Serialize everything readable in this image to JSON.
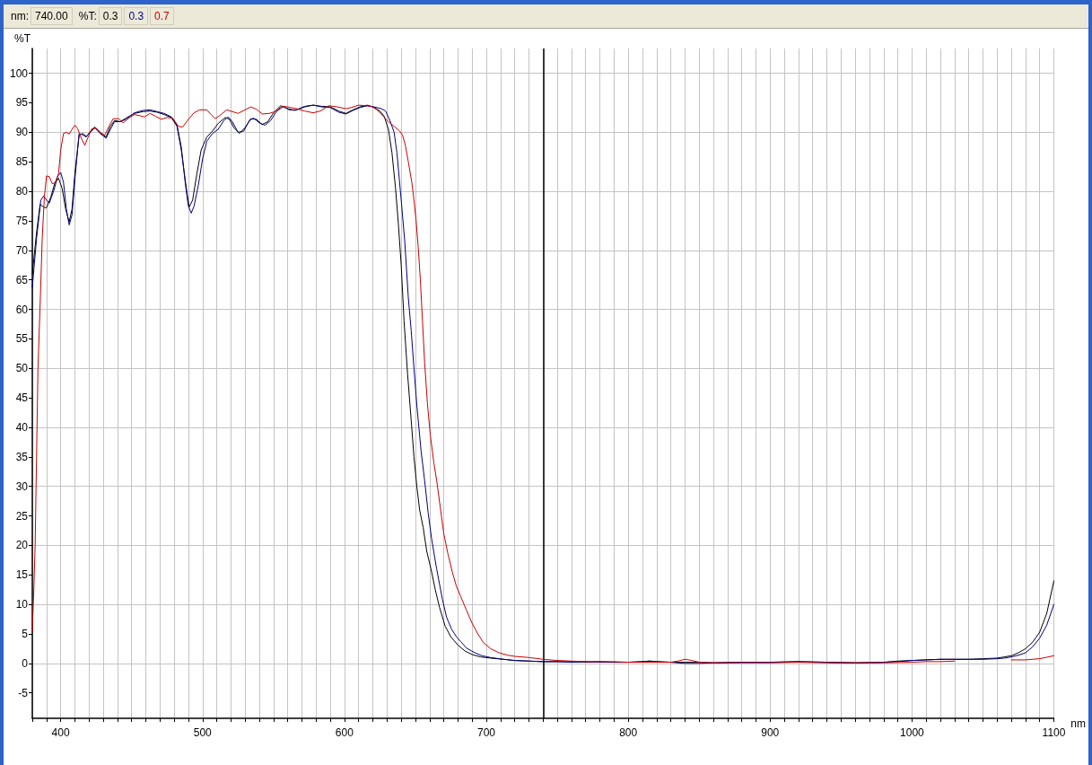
{
  "chart_data": {
    "type": "line",
    "xlabel": "nm",
    "ylabel": "%T",
    "annotations": [
      "nm:",
      "740.00",
      "%T:",
      "0.3",
      "0.3",
      "0.7"
    ],
    "xlim": [
      380,
      1100
    ],
    "xticks": [
      {
        "value": 380,
        "label": null
      },
      {
        "value": 390,
        "label": null
      },
      400,
      {
        "value": 410,
        "label": null
      },
      {
        "value": 420,
        "label": null
      },
      {
        "value": 430,
        "label": null
      },
      {
        "value": 440,
        "label": null
      },
      {
        "value": 450,
        "label": null
      },
      {
        "value": 460,
        "label": null
      },
      {
        "value": 470,
        "label": null
      },
      {
        "value": 480,
        "label": null
      },
      {
        "value": 490,
        "label": null
      },
      500,
      {
        "value": 510,
        "label": null
      },
      {
        "value": 520,
        "label": null
      },
      {
        "value": 530,
        "label": null
      },
      {
        "value": 540,
        "label": null
      },
      {
        "value": 550,
        "label": null
      },
      {
        "value": 560,
        "label": null
      },
      {
        "value": 570,
        "label": null
      },
      {
        "value": 580,
        "label": null
      },
      {
        "value": 590,
        "label": null
      },
      600,
      {
        "value": 610,
        "label": null
      },
      {
        "value": 620,
        "label": null
      },
      {
        "value": 630,
        "label": null
      },
      {
        "value": 640,
        "label": null
      },
      {
        "value": 650,
        "label": null
      },
      {
        "value": 660,
        "label": null
      },
      {
        "value": 670,
        "label": null
      },
      {
        "value": 680,
        "label": null
      },
      {
        "value": 690,
        "label": null
      },
      700,
      {
        "value": 710,
        "label": null
      },
      {
        "value": 720,
        "label": null
      },
      {
        "value": 730,
        "label": null
      },
      {
        "value": 740,
        "label": null
      },
      {
        "value": 750,
        "label": null
      },
      {
        "value": 760,
        "label": null
      },
      {
        "value": 770,
        "label": null
      },
      {
        "value": 780,
        "label": null
      },
      {
        "value": 790,
        "label": null
      },
      800,
      {
        "value": 810,
        "label": null
      },
      {
        "value": 820,
        "label": null
      },
      {
        "value": 830,
        "label": null
      },
      {
        "value": 840,
        "label": null
      },
      {
        "value": 850,
        "label": null
      },
      {
        "value": 860,
        "label": null
      },
      {
        "value": 870,
        "label": null
      },
      {
        "value": 880,
        "label": null
      },
      {
        "value": 890,
        "label": null
      },
      900,
      {
        "value": 910,
        "label": null
      },
      {
        "value": 920,
        "label": null
      },
      {
        "value": 930,
        "label": null
      },
      {
        "value": 940,
        "label": null
      },
      {
        "value": 950,
        "label": null
      },
      {
        "value": 960,
        "label": null
      },
      {
        "value": 970,
        "label": null
      },
      {
        "value": 980,
        "label": null
      },
      {
        "value": 990,
        "label": null
      },
      1000,
      {
        "value": 1010,
        "label": null
      },
      {
        "value": 1020,
        "label": null
      },
      {
        "value": 1030,
        "label": null
      },
      {
        "value": 1040,
        "label": null
      },
      {
        "value": 1050,
        "label": null
      },
      {
        "value": 1060,
        "label": null
      },
      {
        "value": 1070,
        "label": null
      },
      {
        "value": 1080,
        "label": null
      },
      {
        "value": 1090,
        "label": null
      },
      1100
    ],
    "ylim": [
      -9.3,
      104.2
    ],
    "yticks": [
      -5,
      0,
      5,
      10,
      15,
      20,
      25,
      30,
      35,
      40,
      45,
      50,
      55,
      60,
      65,
      70,
      75,
      80,
      85,
      90,
      95,
      100
    ],
    "grid": true,
    "marker": "none",
    "line_style": "solid",
    "ref_lines": [
      {
        "axis": "x",
        "value": 740,
        "color": "#000000"
      }
    ],
    "series": [
      {
        "color": "#000000",
        "x": [
          380,
          383,
          385.5,
          388,
          390,
          393,
          396,
          398.5,
          401,
          403.5,
          406,
          408,
          410,
          413,
          415.5,
          418,
          421,
          424,
          428,
          432,
          435,
          438,
          442,
          446,
          452,
          458,
          463,
          468,
          473,
          478,
          482,
          485,
          488,
          490.5,
          493,
          496,
          499,
          503,
          507,
          511,
          516,
          519,
          522,
          526,
          530,
          534,
          538,
          542,
          546,
          550,
          555,
          560,
          565,
          572,
          578,
          584,
          590,
          596,
          601,
          606,
          611,
          616,
          621,
          625,
          628,
          631,
          633.5,
          636,
          638,
          640,
          642,
          644.5,
          647,
          649,
          651,
          653,
          655.5,
          658,
          661,
          664,
          667,
          671,
          675,
          680,
          685,
          690,
          696,
          703,
          712,
          720,
          730,
          740,
          750,
          760,
          770,
          780,
          790,
          800,
          810,
          815,
          820,
          830,
          840,
          850,
          860,
          880,
          900,
          920,
          940,
          960,
          980,
          990,
          1000,
          1010,
          1020,
          1030,
          1040,
          1050,
          1060,
          1065,
          1070,
          1075,
          1080,
          1085,
          1090,
          1095,
          1100
        ],
        "values": [
          66,
          73,
          77.8,
          77.3,
          77.2,
          79,
          81.5,
          82.2,
          80.5,
          77,
          74.8,
          77,
          83,
          89.5,
          89.8,
          89.3,
          90,
          90.8,
          89.8,
          89.2,
          91,
          92,
          91.8,
          92.4,
          93.2,
          93.5,
          93.6,
          93.4,
          93,
          92.5,
          91,
          87,
          81.5,
          77.3,
          78.5,
          83,
          87,
          89.2,
          90.2,
          91.5,
          92.5,
          92.2,
          90.8,
          89.8,
          90.8,
          92.3,
          92.2,
          91.3,
          91.8,
          93.3,
          94.5,
          94,
          93.7,
          94.3,
          94.6,
          94.4,
          94.3,
          93.6,
          93.2,
          93.8,
          94.3,
          94.6,
          94.2,
          93.6,
          92.7,
          90.5,
          86.5,
          80.5,
          74.5,
          67.5,
          58,
          49,
          41.3,
          35,
          30,
          26,
          23,
          19,
          16,
          12.5,
          9.5,
          6.3,
          4.5,
          3.1,
          2.1,
          1.5,
          1.1,
          0.9,
          0.7,
          0.5,
          0.4,
          0.3,
          0.3,
          0.3,
          0.2,
          0.3,
          0.2,
          0.2,
          0.3,
          0.4,
          0.3,
          0.2,
          0.2,
          0.2,
          0.1,
          0.2,
          0.2,
          0.3,
          0.2,
          0.1,
          0.2,
          0.4,
          0.5,
          0.6,
          0.7,
          0.7,
          0.7,
          0.8,
          0.9,
          1.1,
          1.3,
          1.8,
          2.5,
          3.6,
          5.3,
          8.5,
          14
        ]
      },
      {
        "color": "#000080",
        "x": [
          380,
          383,
          386,
          388,
          390,
          392,
          395,
          398,
          400,
          402,
          404,
          406,
          408,
          410,
          413,
          416,
          418,
          421,
          424,
          428,
          432,
          435,
          438,
          442,
          446,
          452,
          458,
          463,
          468,
          473,
          478,
          482,
          485,
          488,
          490,
          492,
          494,
          497,
          500,
          503,
          507,
          511,
          515,
          518,
          521,
          525,
          529,
          533,
          536,
          540,
          544,
          548,
          552,
          557,
          561,
          566,
          572,
          578,
          584,
          590,
          596,
          601,
          606,
          611,
          616,
          621,
          626,
          629,
          632,
          635,
          637,
          640,
          642.5,
          645,
          647,
          649,
          651,
          654,
          656.5,
          659,
          661.5,
          665,
          669,
          672,
          675.5,
          679,
          682,
          686,
          692,
          697,
          703,
          712,
          720,
          730,
          740,
          750,
          760,
          770,
          780,
          790,
          800,
          810,
          815,
          820,
          830,
          840,
          850,
          860,
          880,
          900,
          920,
          940,
          960,
          980,
          990,
          1000,
          1010,
          1020,
          1030,
          1040,
          1050,
          1060,
          1065,
          1070,
          1075,
          1080,
          1085,
          1090,
          1095,
          1100
        ],
        "values": [
          63.7,
          72,
          78.5,
          79.2,
          78.5,
          78,
          80,
          82.6,
          83.2,
          81.5,
          77,
          74.3,
          76,
          82,
          89.8,
          89.5,
          89.2,
          90.2,
          90.9,
          89.8,
          89,
          90.5,
          91.8,
          91.8,
          92.2,
          93.3,
          93.7,
          93.8,
          93.5,
          93.2,
          92.6,
          91.2,
          87.5,
          81,
          77.5,
          76.3,
          77.5,
          81,
          85.5,
          88.5,
          89.8,
          90.5,
          92,
          92.6,
          91.8,
          90,
          90.2,
          92,
          92.4,
          91.6,
          91.2,
          92,
          93.5,
          94.4,
          93.8,
          93.8,
          94.4,
          94.6,
          94.3,
          94.2,
          93.4,
          93.1,
          93.7,
          94.2,
          94.5,
          94.3,
          94,
          93.6,
          92,
          90,
          86.5,
          78.5,
          71.5,
          62,
          56.5,
          50,
          43.8,
          36,
          31,
          25.5,
          21,
          16,
          10.9,
          7.8,
          5.8,
          4.5,
          3.7,
          2.6,
          1.8,
          1.3,
          1.0,
          0.7,
          0.5,
          0.4,
          0.3,
          0.3,
          0.2,
          0.3,
          0.2,
          0.2,
          0.2,
          0.3,
          0.4,
          0.3,
          0.2,
          0,
          0,
          0.1,
          0.2,
          0.2,
          0.3,
          0.2,
          0.1,
          0.2,
          0.3,
          0.5,
          0.6,
          0.7,
          0.7,
          0.7,
          0.7,
          0.8,
          0.9,
          1.1,
          1.4,
          1.8,
          2.8,
          4.3,
          6.5,
          10
        ]
      },
      {
        "color": "#cc0000",
        "x": [
          380,
          381,
          382,
          383,
          384,
          385.5,
          387,
          388.5,
          390,
          392,
          394,
          396,
          398.5,
          400,
          402,
          404,
          406,
          408,
          410,
          412,
          414.5,
          417,
          419,
          422,
          425,
          428.5,
          431,
          434,
          437,
          441,
          444,
          448,
          452,
          456,
          459,
          463,
          467,
          471,
          475,
          479,
          483,
          486,
          490,
          494,
          498,
          503,
          506,
          509,
          513,
          517,
          521,
          525,
          530,
          534,
          538,
          542,
          547,
          551,
          556,
          560,
          566,
          572,
          578,
          583,
          589,
          595,
          601,
          605,
          610,
          615,
          619,
          623,
          627,
          631,
          635,
          639,
          641,
          643,
          645,
          647.5,
          649,
          650.5,
          652,
          653.5,
          655,
          656.5,
          658.5,
          660.5,
          663,
          665,
          667.5,
          670,
          673,
          676,
          679,
          682,
          686,
          690,
          694,
          698,
          703,
          709,
          715,
          720,
          730,
          740,
          750,
          760,
          770,
          780,
          790,
          800,
          810,
          820,
          830,
          835,
          840,
          845,
          850,
          860,
          880,
          900,
          920,
          940,
          960,
          980,
          1000,
          1010,
          1020,
          1030,
          1040,
          1050,
          1060,
          1070,
          1080,
          1090,
          1100
        ],
        "values": [
          5.5,
          12,
          20,
          35,
          50,
          60.7,
          72,
          79,
          82.6,
          82.5,
          81.3,
          81.4,
          83,
          87,
          89.8,
          90,
          89.7,
          90.5,
          91.2,
          90.6,
          89,
          87.8,
          89,
          90.6,
          90.7,
          89.9,
          89.5,
          91,
          92.3,
          92.3,
          91.6,
          92.4,
          93,
          92.8,
          92.6,
          93.2,
          92.7,
          92.2,
          92.5,
          92.4,
          91,
          90.9,
          92.2,
          93.3,
          93.8,
          93.8,
          93,
          92.3,
          93,
          93.8,
          93.5,
          93.2,
          93.8,
          94.3,
          93.9,
          93.1,
          93.2,
          93.5,
          94.4,
          94.3,
          94,
          93.6,
          93.3,
          93.6,
          94.5,
          94.3,
          94,
          94.2,
          94.6,
          94.5,
          94.4,
          93.8,
          92.8,
          91.8,
          91,
          90.2,
          89.5,
          87.7,
          85,
          81.5,
          78.5,
          75,
          70.5,
          65,
          58,
          51,
          44,
          38.7,
          34,
          31,
          26.5,
          22,
          18.5,
          15.5,
          13,
          11.3,
          9,
          6.8,
          5,
          3.5,
          2.5,
          1.8,
          1.4,
          1.2,
          1.0,
          0.7,
          0.5,
          0.4,
          0.3,
          0.3,
          0.3,
          0.2,
          0.2,
          0.2,
          0.2,
          0.4,
          0.7,
          0.5,
          0.2,
          0.1,
          0.1,
          0.1,
          0.2,
          0.1,
          0.1,
          0.1,
          0.2,
          0.3,
          0.3,
          0.4,
          null,
          null,
          null,
          0.6,
          0.6,
          0.8,
          1.3
        ]
      }
    ]
  }
}
